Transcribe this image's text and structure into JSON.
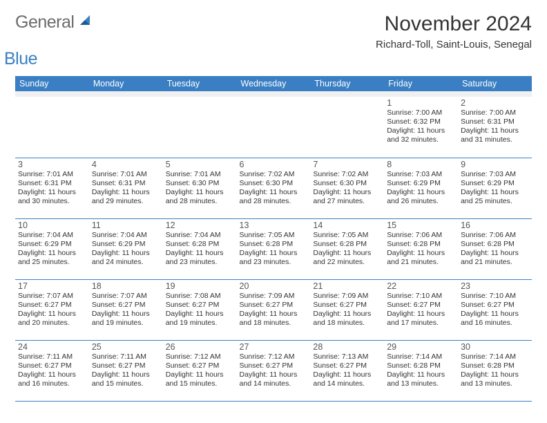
{
  "logo": {
    "general": "General",
    "blue": "Blue"
  },
  "header": {
    "title": "November 2024",
    "subtitle": "Richard-Toll, Saint-Louis, Senegal"
  },
  "calendar": {
    "type": "table",
    "columns": [
      "Sunday",
      "Monday",
      "Tuesday",
      "Wednesday",
      "Thursday",
      "Friday",
      "Saturday"
    ],
    "header_bg": "#3a7fc4",
    "header_text_color": "#ffffff",
    "cell_border_color": "#3a7fc4",
    "blank_row_bg": "#f0f0f0",
    "body_font_size_pt": 8,
    "daynum_font_size_pt": 9.5,
    "weeks": [
      [
        null,
        null,
        null,
        null,
        null,
        {
          "day": "1",
          "sunrise": "Sunrise: 7:00 AM",
          "sunset": "Sunset: 6:32 PM",
          "daylight": "Daylight: 11 hours and 32 minutes."
        },
        {
          "day": "2",
          "sunrise": "Sunrise: 7:00 AM",
          "sunset": "Sunset: 6:31 PM",
          "daylight": "Daylight: 11 hours and 31 minutes."
        }
      ],
      [
        {
          "day": "3",
          "sunrise": "Sunrise: 7:01 AM",
          "sunset": "Sunset: 6:31 PM",
          "daylight": "Daylight: 11 hours and 30 minutes."
        },
        {
          "day": "4",
          "sunrise": "Sunrise: 7:01 AM",
          "sunset": "Sunset: 6:31 PM",
          "daylight": "Daylight: 11 hours and 29 minutes."
        },
        {
          "day": "5",
          "sunrise": "Sunrise: 7:01 AM",
          "sunset": "Sunset: 6:30 PM",
          "daylight": "Daylight: 11 hours and 28 minutes."
        },
        {
          "day": "6",
          "sunrise": "Sunrise: 7:02 AM",
          "sunset": "Sunset: 6:30 PM",
          "daylight": "Daylight: 11 hours and 28 minutes."
        },
        {
          "day": "7",
          "sunrise": "Sunrise: 7:02 AM",
          "sunset": "Sunset: 6:30 PM",
          "daylight": "Daylight: 11 hours and 27 minutes."
        },
        {
          "day": "8",
          "sunrise": "Sunrise: 7:03 AM",
          "sunset": "Sunset: 6:29 PM",
          "daylight": "Daylight: 11 hours and 26 minutes."
        },
        {
          "day": "9",
          "sunrise": "Sunrise: 7:03 AM",
          "sunset": "Sunset: 6:29 PM",
          "daylight": "Daylight: 11 hours and 25 minutes."
        }
      ],
      [
        {
          "day": "10",
          "sunrise": "Sunrise: 7:04 AM",
          "sunset": "Sunset: 6:29 PM",
          "daylight": "Daylight: 11 hours and 25 minutes."
        },
        {
          "day": "11",
          "sunrise": "Sunrise: 7:04 AM",
          "sunset": "Sunset: 6:29 PM",
          "daylight": "Daylight: 11 hours and 24 minutes."
        },
        {
          "day": "12",
          "sunrise": "Sunrise: 7:04 AM",
          "sunset": "Sunset: 6:28 PM",
          "daylight": "Daylight: 11 hours and 23 minutes."
        },
        {
          "day": "13",
          "sunrise": "Sunrise: 7:05 AM",
          "sunset": "Sunset: 6:28 PM",
          "daylight": "Daylight: 11 hours and 23 minutes."
        },
        {
          "day": "14",
          "sunrise": "Sunrise: 7:05 AM",
          "sunset": "Sunset: 6:28 PM",
          "daylight": "Daylight: 11 hours and 22 minutes."
        },
        {
          "day": "15",
          "sunrise": "Sunrise: 7:06 AM",
          "sunset": "Sunset: 6:28 PM",
          "daylight": "Daylight: 11 hours and 21 minutes."
        },
        {
          "day": "16",
          "sunrise": "Sunrise: 7:06 AM",
          "sunset": "Sunset: 6:28 PM",
          "daylight": "Daylight: 11 hours and 21 minutes."
        }
      ],
      [
        {
          "day": "17",
          "sunrise": "Sunrise: 7:07 AM",
          "sunset": "Sunset: 6:27 PM",
          "daylight": "Daylight: 11 hours and 20 minutes."
        },
        {
          "day": "18",
          "sunrise": "Sunrise: 7:07 AM",
          "sunset": "Sunset: 6:27 PM",
          "daylight": "Daylight: 11 hours and 19 minutes."
        },
        {
          "day": "19",
          "sunrise": "Sunrise: 7:08 AM",
          "sunset": "Sunset: 6:27 PM",
          "daylight": "Daylight: 11 hours and 19 minutes."
        },
        {
          "day": "20",
          "sunrise": "Sunrise: 7:09 AM",
          "sunset": "Sunset: 6:27 PM",
          "daylight": "Daylight: 11 hours and 18 minutes."
        },
        {
          "day": "21",
          "sunrise": "Sunrise: 7:09 AM",
          "sunset": "Sunset: 6:27 PM",
          "daylight": "Daylight: 11 hours and 18 minutes."
        },
        {
          "day": "22",
          "sunrise": "Sunrise: 7:10 AM",
          "sunset": "Sunset: 6:27 PM",
          "daylight": "Daylight: 11 hours and 17 minutes."
        },
        {
          "day": "23",
          "sunrise": "Sunrise: 7:10 AM",
          "sunset": "Sunset: 6:27 PM",
          "daylight": "Daylight: 11 hours and 16 minutes."
        }
      ],
      [
        {
          "day": "24",
          "sunrise": "Sunrise: 7:11 AM",
          "sunset": "Sunset: 6:27 PM",
          "daylight": "Daylight: 11 hours and 16 minutes."
        },
        {
          "day": "25",
          "sunrise": "Sunrise: 7:11 AM",
          "sunset": "Sunset: 6:27 PM",
          "daylight": "Daylight: 11 hours and 15 minutes."
        },
        {
          "day": "26",
          "sunrise": "Sunrise: 7:12 AM",
          "sunset": "Sunset: 6:27 PM",
          "daylight": "Daylight: 11 hours and 15 minutes."
        },
        {
          "day": "27",
          "sunrise": "Sunrise: 7:12 AM",
          "sunset": "Sunset: 6:27 PM",
          "daylight": "Daylight: 11 hours and 14 minutes."
        },
        {
          "day": "28",
          "sunrise": "Sunrise: 7:13 AM",
          "sunset": "Sunset: 6:27 PM",
          "daylight": "Daylight: 11 hours and 14 minutes."
        },
        {
          "day": "29",
          "sunrise": "Sunrise: 7:14 AM",
          "sunset": "Sunset: 6:28 PM",
          "daylight": "Daylight: 11 hours and 13 minutes."
        },
        {
          "day": "30",
          "sunrise": "Sunrise: 7:14 AM",
          "sunset": "Sunset: 6:28 PM",
          "daylight": "Daylight: 11 hours and 13 minutes."
        }
      ]
    ]
  }
}
